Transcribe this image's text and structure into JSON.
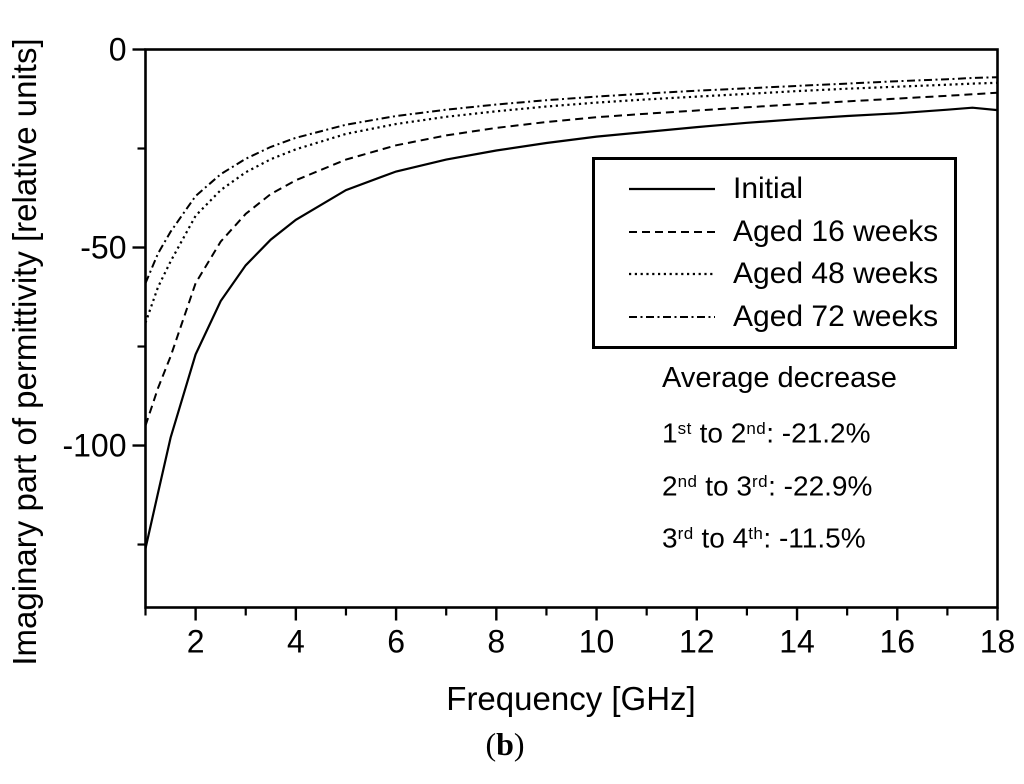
{
  "caption": {
    "open": "(",
    "letter": "b",
    "close": ")"
  },
  "colors": {
    "line": "#000000",
    "background": "#ffffff"
  },
  "chart_data": {
    "type": "line",
    "title": "",
    "xlabel": "Frequency [GHz]",
    "ylabel": "Imaginary part of permittivity [relative units]",
    "xlim": [
      1,
      18
    ],
    "ylim": [
      -140.9,
      0
    ],
    "grid": false,
    "legend_position": "upper right",
    "x_major_ticks": [
      2,
      4,
      6,
      8,
      10,
      12,
      14,
      16,
      18
    ],
    "x_minor_ticks": [
      1,
      3,
      5,
      7,
      9,
      11,
      13,
      15,
      17
    ],
    "y_major_ticks": [
      0,
      -50,
      -100
    ],
    "y_minor_ticks": [
      -25,
      -75,
      -125
    ],
    "x": [
      1,
      1.25,
      1.5,
      2,
      2.5,
      3,
      3.5,
      4,
      5,
      6,
      7,
      8,
      9,
      10,
      11,
      12,
      13,
      14,
      15,
      16,
      17,
      17.5,
      18
    ],
    "series": [
      {
        "name": "Initial",
        "style": "solid",
        "dash": "",
        "width": 2.2,
        "values": [
          -126,
          -112,
          -98,
          -77,
          -63.5,
          -54.5,
          -48,
          -43,
          -35.5,
          -30.8,
          -27.8,
          -25.5,
          -23.6,
          -22,
          -20.8,
          -19.6,
          -18.5,
          -17.6,
          -16.8,
          -16.1,
          -15.2,
          -14.7,
          -15.3
        ]
      },
      {
        "name": "Aged 16 weeks",
        "style": "dashed",
        "dash": "8 5",
        "width": 2,
        "values": [
          -95,
          -85.5,
          -77.5,
          -59,
          -48.5,
          -41.5,
          -36.5,
          -33,
          -27.8,
          -24.2,
          -21.7,
          -19.8,
          -18.3,
          -17.1,
          -16.2,
          -15.4,
          -14.6,
          -13.8,
          -13.1,
          -12.4,
          -11.7,
          -11.3,
          -10.9
        ]
      },
      {
        "name": "Aged 48 weeks",
        "style": "dotted",
        "dash": "2.2 3.6",
        "width": 2.2,
        "values": [
          -69,
          -60,
          -53.5,
          -42,
          -35.5,
          -31,
          -27.7,
          -25.2,
          -21.3,
          -18.8,
          -17,
          -15.6,
          -14.4,
          -13.4,
          -12.6,
          -11.9,
          -11.2,
          -10.5,
          -9.9,
          -9.4,
          -8.9,
          -8.6,
          -8.4
        ]
      },
      {
        "name": "Aged 72 weeks",
        "style": "dash-dot",
        "dash": "8 3.5 2 3.5",
        "width": 2,
        "values": [
          -59,
          -51.5,
          -46,
          -37,
          -31.5,
          -27.6,
          -24.6,
          -22.3,
          -19,
          -16.8,
          -15.2,
          -13.9,
          -12.8,
          -11.9,
          -11.1,
          -10.4,
          -9.8,
          -9.2,
          -8.6,
          -8.0,
          -7.5,
          -7.2,
          -7.0
        ]
      }
    ],
    "annotation": {
      "title": "Average decrease",
      "rows": [
        {
          "a": "1",
          "a_sup": "st",
          "mid": " to ",
          "b": "2",
          "b_sup": "nd",
          "tail": ": -21.2%"
        },
        {
          "a": "2",
          "a_sup": "nd",
          "mid": " to ",
          "b": "3",
          "b_sup": "rd",
          "tail": ": -22.9%"
        },
        {
          "a": "3",
          "a_sup": "rd",
          "mid": " to ",
          "b": "4",
          "b_sup": "th",
          "tail": ": -11.5%"
        }
      ]
    }
  }
}
